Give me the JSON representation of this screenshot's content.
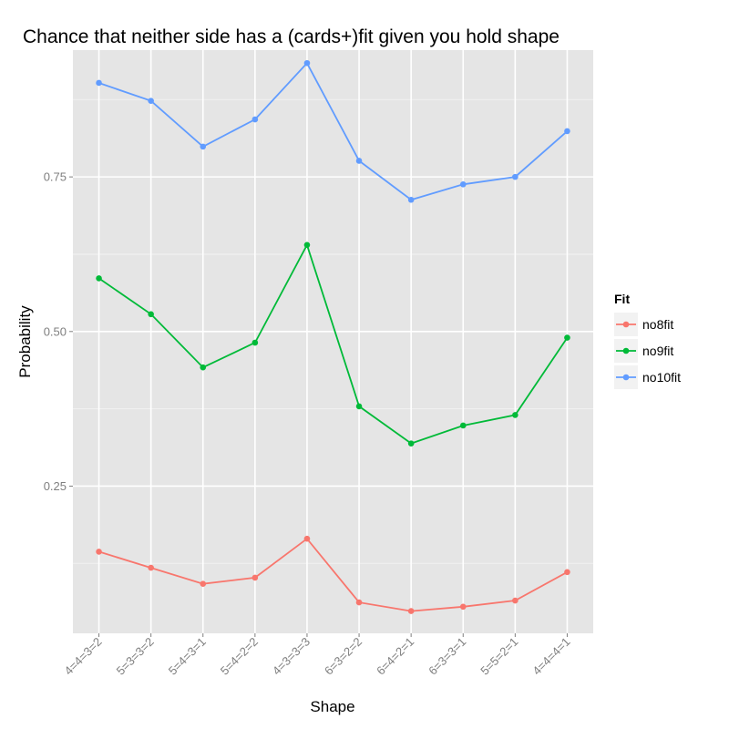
{
  "chart_data": {
    "type": "line",
    "title": "Chance that neither side has a (cards+)fit given you hold shape",
    "xlabel": "Shape",
    "ylabel": "Probability",
    "categories": [
      "4=4=3=2",
      "5=3=3=2",
      "5=4=3=1",
      "5=4=2=2",
      "4=3=3=3",
      "6=3=2=2",
      "6=4=2=1",
      "6=3=3=1",
      "5=5=2=1",
      "4=4=4=1"
    ],
    "ylim": [
      0.012,
      0.955
    ],
    "yticks": [
      0.25,
      0.5,
      0.75
    ],
    "ytick_labels": [
      "0.25",
      "0.50",
      "0.75"
    ],
    "grid": true,
    "legend": {
      "title": "Fit",
      "position": "right"
    },
    "series": [
      {
        "name": "no8fit",
        "color": "#F8766D",
        "values": [
          0.144,
          0.118,
          0.092,
          0.102,
          0.165,
          0.062,
          0.048,
          0.055,
          0.065,
          0.111
        ]
      },
      {
        "name": "no9fit",
        "color": "#00BA38",
        "values": [
          0.586,
          0.528,
          0.442,
          0.482,
          0.64,
          0.379,
          0.319,
          0.348,
          0.365,
          0.49
        ]
      },
      {
        "name": "no10fit",
        "color": "#619CFF",
        "values": [
          0.902,
          0.873,
          0.799,
          0.843,
          0.934,
          0.776,
          0.713,
          0.738,
          0.75,
          0.824
        ]
      }
    ]
  }
}
